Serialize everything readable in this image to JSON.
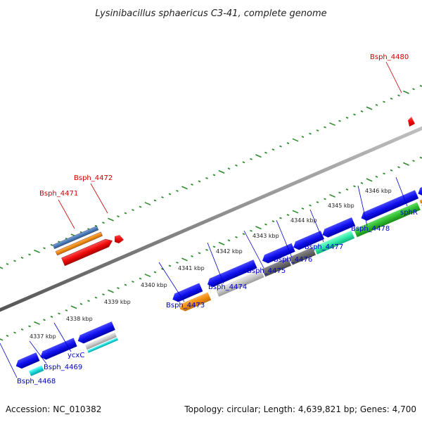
{
  "title": "Lysinibacillus sphaericus C3-41, complete genome",
  "footer": {
    "accession": "Accession: NC_010382",
    "summary": "Topology: circular; Length: 4,639,821 bp; Genes: 4,700"
  },
  "colors": {
    "forward_label": "#cc0000",
    "reverse_label": "#0000cc",
    "backbone": "#8c8c8c",
    "tick": "#2e8b2e",
    "tick_label": "#222222",
    "leader": "#0000cc"
  },
  "scale_ticks": [
    "4337 kbp",
    "4338 kbp",
    "4339 kbp",
    "4340 kbp",
    "4341 kbp",
    "4342 kbp",
    "4343 kbp",
    "4344 kbp",
    "4345 kbp",
    "4346 kbp"
  ],
  "forward_labels": [
    "Bsph_4471",
    "Bsph_4472",
    "Bsph_4480"
  ],
  "reverse_labels": [
    "Bsph_4468",
    "Bsph_4469",
    "ycxC",
    "Bsph_4473",
    "Bsph_4474",
    "Bsph_4475",
    "Bsph_4476",
    "Bsph_4477",
    "Bsph_4478",
    "sphR"
  ]
}
